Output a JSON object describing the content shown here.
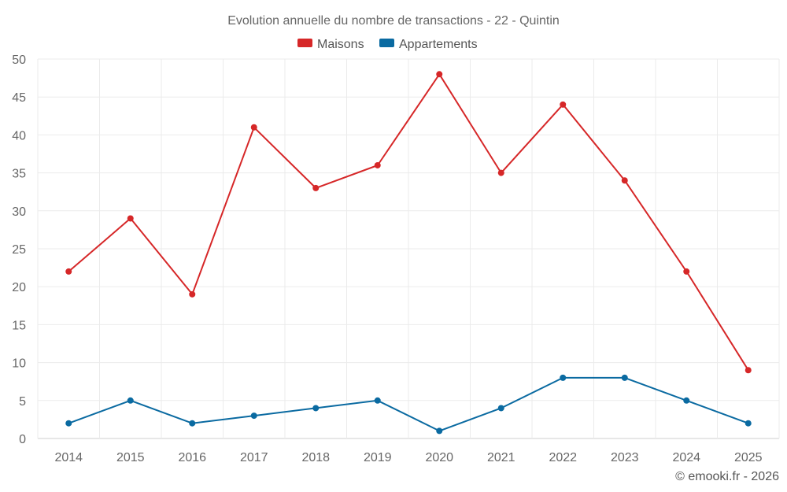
{
  "chart_data": {
    "type": "line",
    "title": "Evolution annuelle du nombre de transactions - 22 - Quintin",
    "categories": [
      "2014",
      "2015",
      "2016",
      "2017",
      "2018",
      "2019",
      "2020",
      "2021",
      "2022",
      "2023",
      "2024",
      "2025"
    ],
    "series": [
      {
        "name": "Maisons",
        "color": "#d62728",
        "values": [
          22,
          29,
          19,
          41,
          33,
          36,
          48,
          35,
          44,
          34,
          22,
          9
        ]
      },
      {
        "name": "Appartements",
        "color": "#0a6aa1",
        "values": [
          2,
          5,
          2,
          3,
          4,
          5,
          1,
          4,
          8,
          8,
          5,
          2
        ]
      }
    ],
    "ylim": [
      0,
      50
    ],
    "yticks": [
      0,
      5,
      10,
      15,
      20,
      25,
      30,
      35,
      40,
      45,
      50
    ],
    "xlabel": "",
    "ylabel": "",
    "grid": true,
    "legend_position": "top-center"
  },
  "credit": "© emooki.fr - 2026"
}
